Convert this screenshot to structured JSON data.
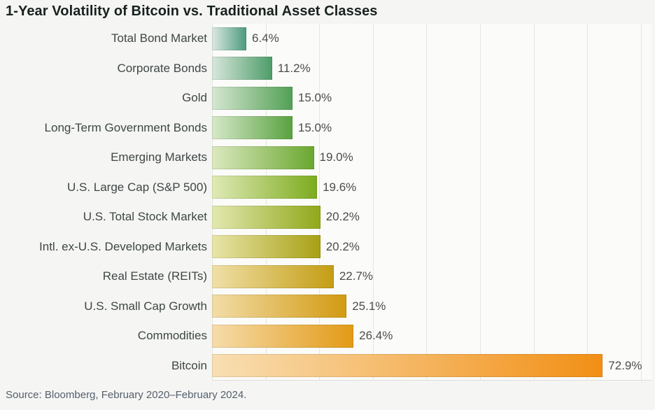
{
  "title": "1-Year Volatility of Bitcoin vs. Traditional Asset Classes",
  "source": "Source: Bloomberg, February 2020–February 2024.",
  "chart_data": {
    "type": "bar",
    "orientation": "horizontal",
    "title": "1-Year Volatility of Bitcoin vs. Traditional Asset Classes",
    "xlabel": "",
    "ylabel": "",
    "xlim": [
      0,
      82
    ],
    "gridline_interval": 10,
    "grid": true,
    "legend": false,
    "categories": [
      "Total Bond Market",
      "Corporate Bonds",
      "Gold",
      "Long-Term Government Bonds",
      "Emerging Markets",
      "U.S. Large Cap (S&P 500)",
      "U.S. Total Stock Market",
      "Intl. ex-U.S. Developed Markets",
      "Real Estate (REITs)",
      "U.S. Small Cap Growth",
      "Commodities",
      "Bitcoin"
    ],
    "values": [
      6.4,
      11.2,
      15.0,
      15.0,
      19.0,
      19.6,
      20.2,
      20.2,
      22.7,
      25.1,
      26.4,
      72.9
    ],
    "value_labels": [
      "6.4%",
      "11.2%",
      "15.0%",
      "15.0%",
      "19.0%",
      "19.6%",
      "20.2%",
      "20.2%",
      "22.7%",
      "25.1%",
      "26.4%",
      "72.9%"
    ],
    "bar_gradient_from": [
      "#dce8e2",
      "#d8e7db",
      "#d6e7d2",
      "#d7e8ca",
      "#dbe9c0",
      "#e0eab6",
      "#e3e8b0",
      "#e8e5a9",
      "#efe0a8",
      "#f2dda8",
      "#f6dcab",
      "#f8dfb3"
    ],
    "bar_gradient_to": [
      "#4b9b7d",
      "#4d9c69",
      "#52a054",
      "#58a23f",
      "#6aa72f",
      "#7cab1e",
      "#90a81a",
      "#a8a014",
      "#c49d13",
      "#d29a11",
      "#e29a16",
      "#f28f15"
    ]
  },
  "colors": {
    "background": "#f5f5f3",
    "plot_background": "#fbfbf9",
    "gridline": "#e5e5e1",
    "title_text": "#17211e",
    "category_text": "#3d4745",
    "value_text": "#4c4c4c",
    "source_text": "#55606c"
  }
}
